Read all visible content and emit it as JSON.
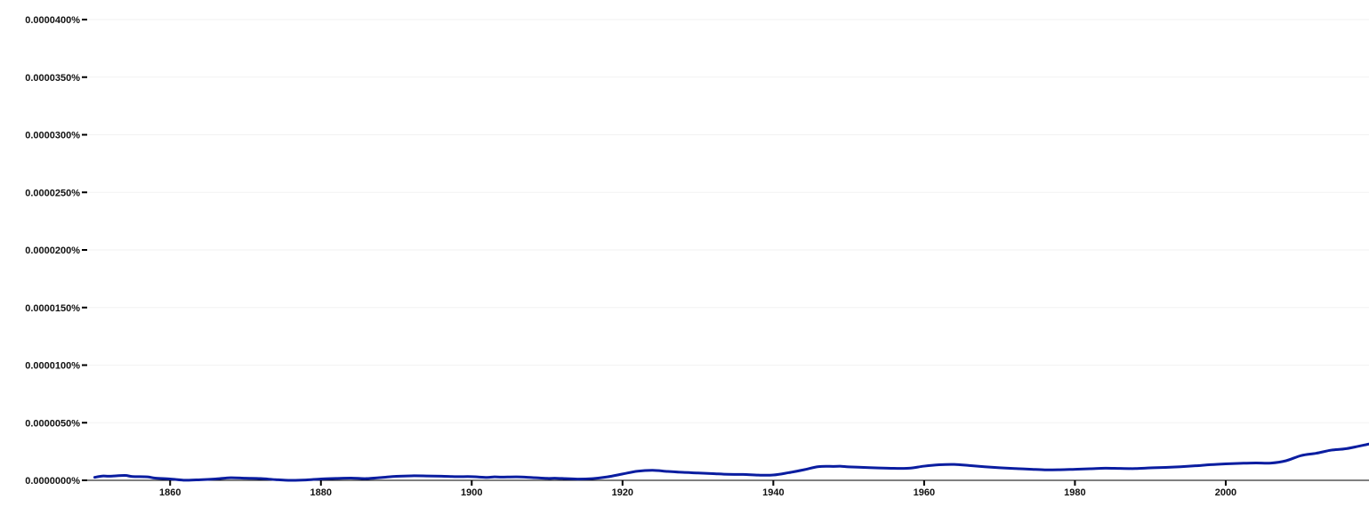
{
  "chart_data": {
    "type": "line",
    "title": "",
    "xlabel": "",
    "ylabel": "",
    "xlim": [
      1849,
      2019
    ],
    "ylim": [
      0,
      4e-07
    ],
    "grid": true,
    "legend": "none",
    "x_ticks": [
      1860,
      1880,
      1900,
      1920,
      1940,
      1960,
      1980,
      2000
    ],
    "x_tick_labels": [
      "1860",
      "1880",
      "1900",
      "1920",
      "1940",
      "1960",
      "1980",
      "2000"
    ],
    "y_ticks": [
      0,
      5e-08,
      1e-07,
      1.5e-07,
      2e-07,
      2.5e-07,
      3e-07,
      3.5e-07,
      4e-07
    ],
    "y_tick_labels": [
      "0.0000000%",
      "0.0000050%",
      "0.0000100%",
      "0.0000150%",
      "0.0000200%",
      "0.0000250%",
      "0.0000300%",
      "0.0000350%",
      "0.0000400%"
    ],
    "series": [
      {
        "color": "#0a1da0",
        "x": [
          1850,
          1851,
          1852,
          1854,
          1855,
          1857,
          1858,
          1860,
          1862,
          1864,
          1866,
          1868,
          1870,
          1872,
          1874,
          1876,
          1878,
          1880,
          1882,
          1884,
          1886,
          1888,
          1890,
          1892,
          1894,
          1896,
          1898,
          1900,
          1902,
          1903,
          1904,
          1906,
          1908,
          1910,
          1911,
          1912,
          1914,
          1916,
          1918,
          1920,
          1922,
          1924,
          1926,
          1928,
          1930,
          1932,
          1934,
          1936,
          1938,
          1940,
          1942,
          1944,
          1946,
          1948,
          1949,
          1950,
          1952,
          1954,
          1956,
          1958,
          1960,
          1962,
          1964,
          1966,
          1968,
          1970,
          1972,
          1974,
          1976,
          1978,
          1980,
          1982,
          1984,
          1986,
          1988,
          1990,
          1992,
          1994,
          1996,
          1998,
          2000,
          2002,
          2004,
          2006,
          2008,
          2010,
          2012,
          2014,
          2016,
          2019
        ],
        "y": [
          2.6e-09,
          3.7e-09,
          3.6e-09,
          4.2e-09,
          3.3e-09,
          3e-09,
          1.9e-09,
          1.2e-09,
          1e-10,
          5e-10,
          1.2e-09,
          2.2e-09,
          1.8e-09,
          1.5e-09,
          6e-10,
          0.0,
          3e-10,
          1.2e-09,
          1.6e-09,
          1.9e-09,
          1.5e-09,
          2.4e-09,
          3.5e-09,
          3.9e-09,
          3.8e-09,
          3.6e-09,
          3.2e-09,
          3.2e-09,
          2.5e-09,
          3e-09,
          2.8e-09,
          3e-09,
          2.4e-09,
          1.7e-09,
          1.8e-09,
          1.6e-09,
          1.1e-09,
          1.5e-09,
          3e-09,
          5.5e-09,
          7.9e-09,
          8.7e-09,
          7.7e-09,
          6.9e-09,
          6.4e-09,
          5.8e-09,
          5.2e-09,
          5.1e-09,
          4.5e-09,
          4.6e-09,
          6.6e-09,
          9.1e-09,
          1.19e-08,
          1.21e-08,
          1.22e-08,
          1.17e-08,
          1.12e-08,
          1.07e-08,
          1.04e-08,
          1.05e-08,
          1.23e-08,
          1.35e-08,
          1.38e-08,
          1.28e-08,
          1.18e-08,
          1.09e-08,
          1.02e-08,
          9.7e-09,
          9.1e-09,
          9.2e-09,
          9.6e-09,
          1e-08,
          1.05e-08,
          1.03e-08,
          1.02e-08,
          1.08e-08,
          1.12e-08,
          1.18e-08,
          1.26e-08,
          1.36e-08,
          1.43e-08,
          1.48e-08,
          1.51e-08,
          1.5e-08,
          1.7e-08,
          2.15e-08,
          2.35e-08,
          2.62e-08,
          2.75e-08,
          3.15e-08
        ]
      }
    ]
  }
}
